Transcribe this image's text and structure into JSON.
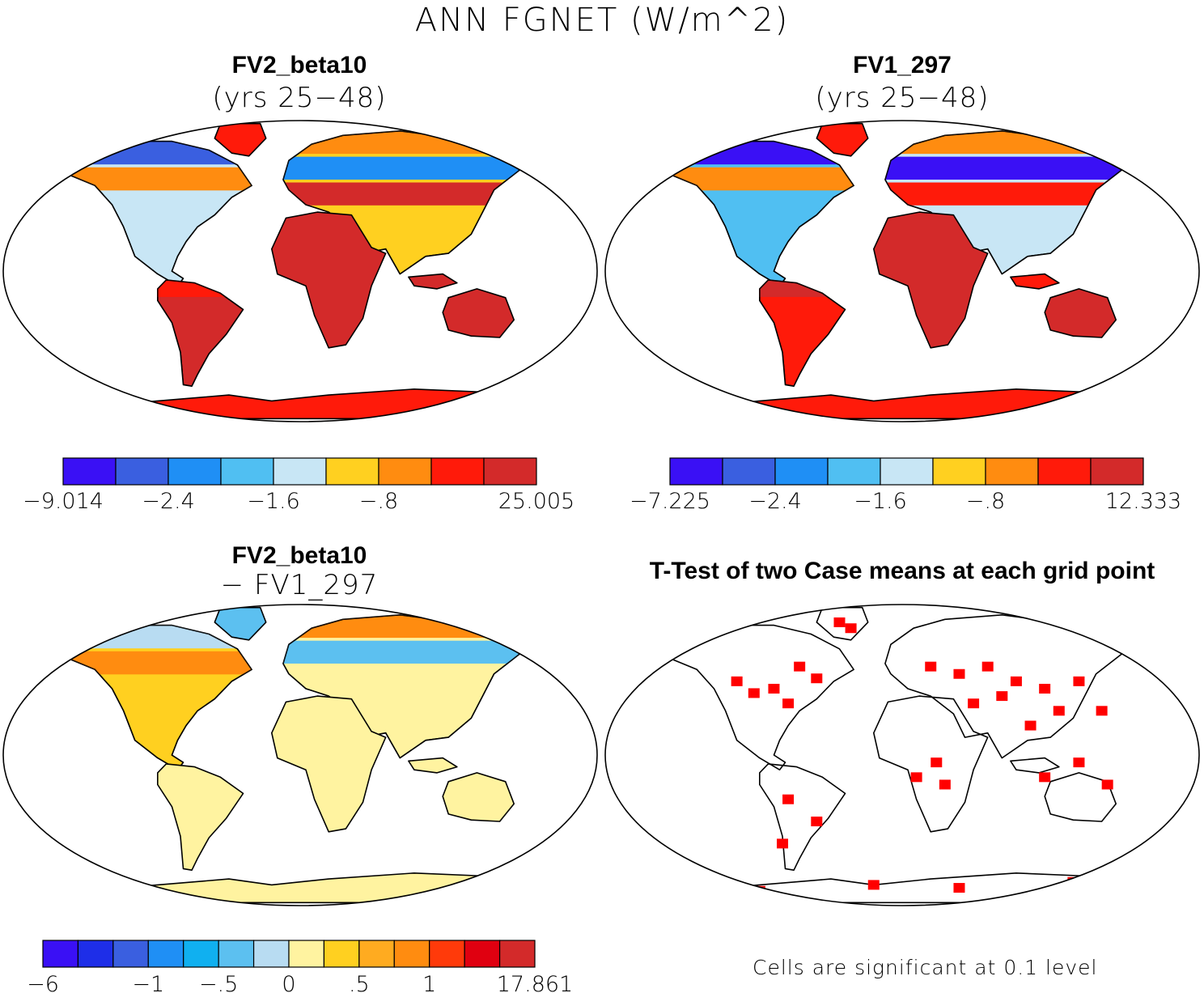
{
  "figure_title": "ANN FGNET (W/m^2)",
  "colors": {
    "ocean": "#ffffff",
    "coast": "#000000",
    "significant": "#ff0000"
  },
  "chart_data": [
    {
      "type": "heatmap",
      "id": "p1",
      "title": "FV2_beta10",
      "subtitle": "(yrs 25−48)",
      "projection": "Robinson-like world map",
      "colorbar": {
        "colors": [
          "#3a10f5",
          "#3a5fe0",
          "#1f8ff5",
          "#50bff2",
          "#c8e6f5",
          "#ffd020",
          "#ff8c10",
          "#ff1a0a",
          "#d32a2a"
        ],
        "ticks": [
          "−9.014",
          "−2.4",
          "−1.6",
          "−.8",
          "25.005"
        ],
        "tick_positions": [
          0,
          2,
          4,
          6,
          9
        ]
      }
    },
    {
      "type": "heatmap",
      "id": "p2",
      "title": "FV1_297",
      "subtitle": "(yrs 25−48)",
      "projection": "Robinson-like world map",
      "colorbar": {
        "colors": [
          "#3a10f5",
          "#3a5fe0",
          "#1f8ff5",
          "#50bff2",
          "#c8e6f5",
          "#ffd020",
          "#ff8c10",
          "#ff1a0a",
          "#d32a2a"
        ],
        "ticks": [
          "−7.225",
          "−2.4",
          "−1.6",
          "−.8",
          "12.333"
        ],
        "tick_positions": [
          0,
          2,
          4,
          6,
          9
        ]
      }
    },
    {
      "type": "heatmap",
      "id": "p3",
      "title": "FV2_beta10",
      "subtitle": "− FV1_297",
      "projection": "Robinson-like world map",
      "colorbar": {
        "colors": [
          "#3a10f5",
          "#1e2ee8",
          "#3a5fe0",
          "#1f8ff5",
          "#10b0f0",
          "#5cc0f0",
          "#b8dcf2",
          "#fff3a0",
          "#ffd020",
          "#ffab20",
          "#ff8c10",
          "#ff3a0a",
          "#e00010",
          "#d32a2a"
        ],
        "ticks": [
          "−6",
          "−1",
          "−.5",
          "0",
          ".5",
          "1",
          "17.861"
        ],
        "tick_positions": [
          0,
          3,
          5,
          7,
          9,
          11,
          14
        ]
      }
    },
    {
      "type": "heatmap",
      "id": "p4",
      "title": "T-Test of two Case means at each grid point",
      "subtitle": "",
      "projection": "Robinson-like world map",
      "footnote": "Cells are significant at 0.1 level"
    }
  ]
}
